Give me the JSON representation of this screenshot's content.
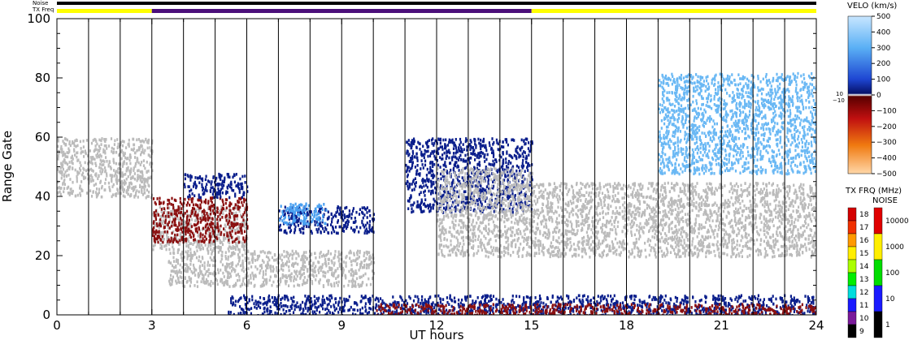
{
  "chart_data": {
    "type": "heatmap",
    "title": "",
    "xlabel": "UT hours",
    "ylabel": "Range Gate",
    "xlim": [
      0,
      24
    ],
    "ylim": [
      0,
      100
    ],
    "xticks": [
      0,
      3,
      6,
      9,
      12,
      15,
      18,
      21,
      24
    ],
    "yticks": [
      0,
      20,
      40,
      60,
      80,
      100
    ],
    "hour_gridlines": true,
    "status_bars": {
      "noise_label": "Noise",
      "txfreq_label": "TX Freq",
      "noise_color": "#000000",
      "txfreq_segments": [
        {
          "start": 0,
          "end": 3,
          "color": "#ffff00"
        },
        {
          "start": 3,
          "end": 15,
          "color": "#4b0f7a"
        },
        {
          "start": 15,
          "end": 24,
          "color": "#ffff00"
        }
      ]
    },
    "velocity_colorbar": {
      "title": "VELO (km/s)",
      "ticks": [
        "500",
        "400",
        "300",
        "200",
        "100",
        "0",
        "−100",
        "−200",
        "−300",
        "−400",
        "−500"
      ],
      "zero_band_labels": [
        "10",
        "−10"
      ],
      "range": [
        -500,
        500
      ]
    },
    "txfreq_colorbar": {
      "title": "TX FRQ (MHz)",
      "ticks": [
        "18",
        "17",
        "16",
        "15",
        "14",
        "13",
        "12",
        "11",
        "10",
        "9"
      ],
      "colors": [
        "#d40000",
        "#f03000",
        "#ff9900",
        "#ffee00",
        "#aaff00",
        "#00ee00",
        "#00dddd",
        "#1a1aff",
        "#7a1a9a",
        "#000000"
      ]
    },
    "noise_colorbar": {
      "title": "NOISE",
      "ticks": [
        "10000",
        "1000",
        "100",
        "10",
        "1"
      ],
      "colors": [
        "#e00000",
        "#ffee00",
        "#00dd00",
        "#1a1aff",
        "#000000"
      ]
    },
    "regions": [
      {
        "name": "ground scatter",
        "x0": 0,
        "x1": 3,
        "y0": 40,
        "y1": 60,
        "color": "#bbbbbb"
      },
      {
        "name": "ground scatter",
        "x0": 3,
        "x1": 6,
        "y0": 22,
        "y1": 37,
        "color": "#bbbbbb"
      },
      {
        "name": "ground scatter",
        "x0": 3.5,
        "x1": 10,
        "y0": 10,
        "y1": 22,
        "color": "#bbbbbb"
      },
      {
        "name": "negative velocity",
        "x0": 3,
        "x1": 6,
        "y0": 25,
        "y1": 40,
        "color": "#8b1010"
      },
      {
        "name": "positive velocity",
        "x0": 4,
        "x1": 6,
        "y0": 40,
        "y1": 48,
        "color": "#0a1e8c"
      },
      {
        "name": "positive velocity",
        "x0": 5.4,
        "x1": 24,
        "y0": 0,
        "y1": 7,
        "color": "#0a1e8c"
      },
      {
        "name": "negative velocity",
        "x0": 10,
        "x1": 24,
        "y0": 0,
        "y1": 4,
        "color": "#8b1010"
      },
      {
        "name": "positive velocity",
        "x0": 7,
        "x1": 10,
        "y0": 28,
        "y1": 37,
        "color": "#0a1e8c"
      },
      {
        "name": "high velocity",
        "x0": 7,
        "x1": 8.5,
        "y0": 31,
        "y1": 38,
        "color": "#4aa0f0"
      },
      {
        "name": "positive velocity",
        "x0": 11,
        "x1": 15,
        "y0": 35,
        "y1": 60,
        "color": "#0a1e8c"
      },
      {
        "name": "ground scatter",
        "x0": 12,
        "x1": 15,
        "y0": 20,
        "y1": 50,
        "color": "#bbbbbb"
      },
      {
        "name": "ground scatter",
        "x0": 15,
        "x1": 24,
        "y0": 20,
        "y1": 45,
        "color": "#bbbbbb"
      },
      {
        "name": "high velocity",
        "x0": 19,
        "x1": 24,
        "y0": 48,
        "y1": 82,
        "color": "#6ab8f4"
      }
    ]
  }
}
